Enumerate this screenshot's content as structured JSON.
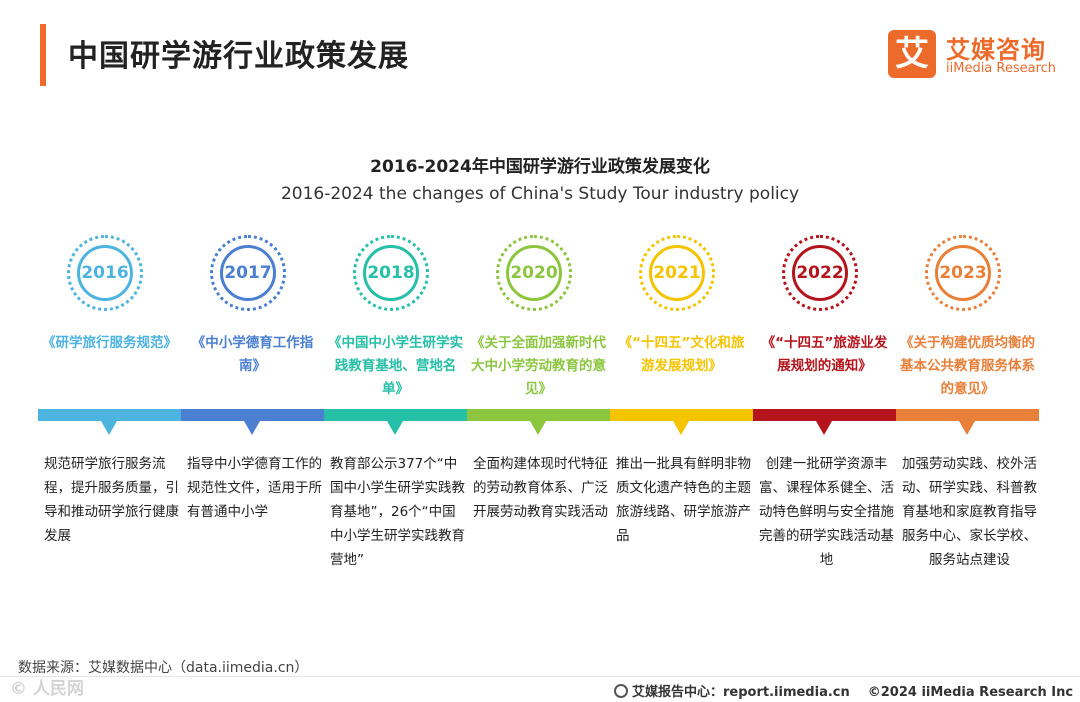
{
  "header": {
    "title": "中国研学游行业政策发展",
    "logo_mark": "艾",
    "logo_cn": "艾媒咨询",
    "logo_en": "iiMedia Research"
  },
  "chart": {
    "title_cn": "2016-2024年中国研学游行业政策发展变化",
    "title_en": "2016-2024 the changes of China's Study Tour industry policy"
  },
  "timeline": [
    {
      "year": "2016",
      "color": "#4db3df",
      "policy": "《研学旅行服务规范》",
      "desc": "规范研学旅行服务流程，提升服务质量，引导和推动研学旅行健康发展",
      "align": "left"
    },
    {
      "year": "2017",
      "color": "#4a7fd1",
      "policy": "《中小学德育工作指南》",
      "desc": "指导中小学德育工作的规范性文件，适用于所有普通中小学",
      "align": "left"
    },
    {
      "year": "2018",
      "color": "#26bfa7",
      "policy": "《中国中小学生研学实践教育基地、营地名单》",
      "desc": "教育部公示377个“中国中小学生研学实践教育基地”，26个“中国中小学生研学实践教育营地”",
      "align": "left"
    },
    {
      "year": "2020",
      "color": "#8cc63f",
      "policy": "《关于全面加强新时代大中小学劳动教育的意见》",
      "desc": "全面构建体现时代特征的劳动教育体系、广泛开展劳动教育实践活动",
      "align": "left"
    },
    {
      "year": "2021",
      "color": "#f5c400",
      "policy": "《“十四五”文化和旅游发展规划》",
      "desc": "推出一批具有鲜明非物质文化遗产特色的主题旅游线路、研学旅游产品",
      "align": "left"
    },
    {
      "year": "2022",
      "color": "#b5141c",
      "policy": "《“十四五”旅游业发展规划的通知》",
      "desc": "创建一批研学资源丰富、课程体系健全、活动特色鲜明与安全措施完善的研学实践活动基地",
      "align": "center"
    },
    {
      "year": "2023",
      "color": "#e8803a",
      "policy": "《关于构建优质均衡的基本公共教育服务体系的意见》",
      "desc": "加强劳动实践、校外活动、研学实践、科普教育基地和家庭教育指导服务中心、家长学校、服务站点建设",
      "align": "center"
    }
  ],
  "footer": {
    "source": "数据来源：艾媒数据中心（data.iimedia.cn）",
    "watermark": "©  人民网",
    "report_label": "艾媒报告中心：report.iimedia.cn",
    "copyright": "©2024  iiMedia Research  Inc"
  }
}
